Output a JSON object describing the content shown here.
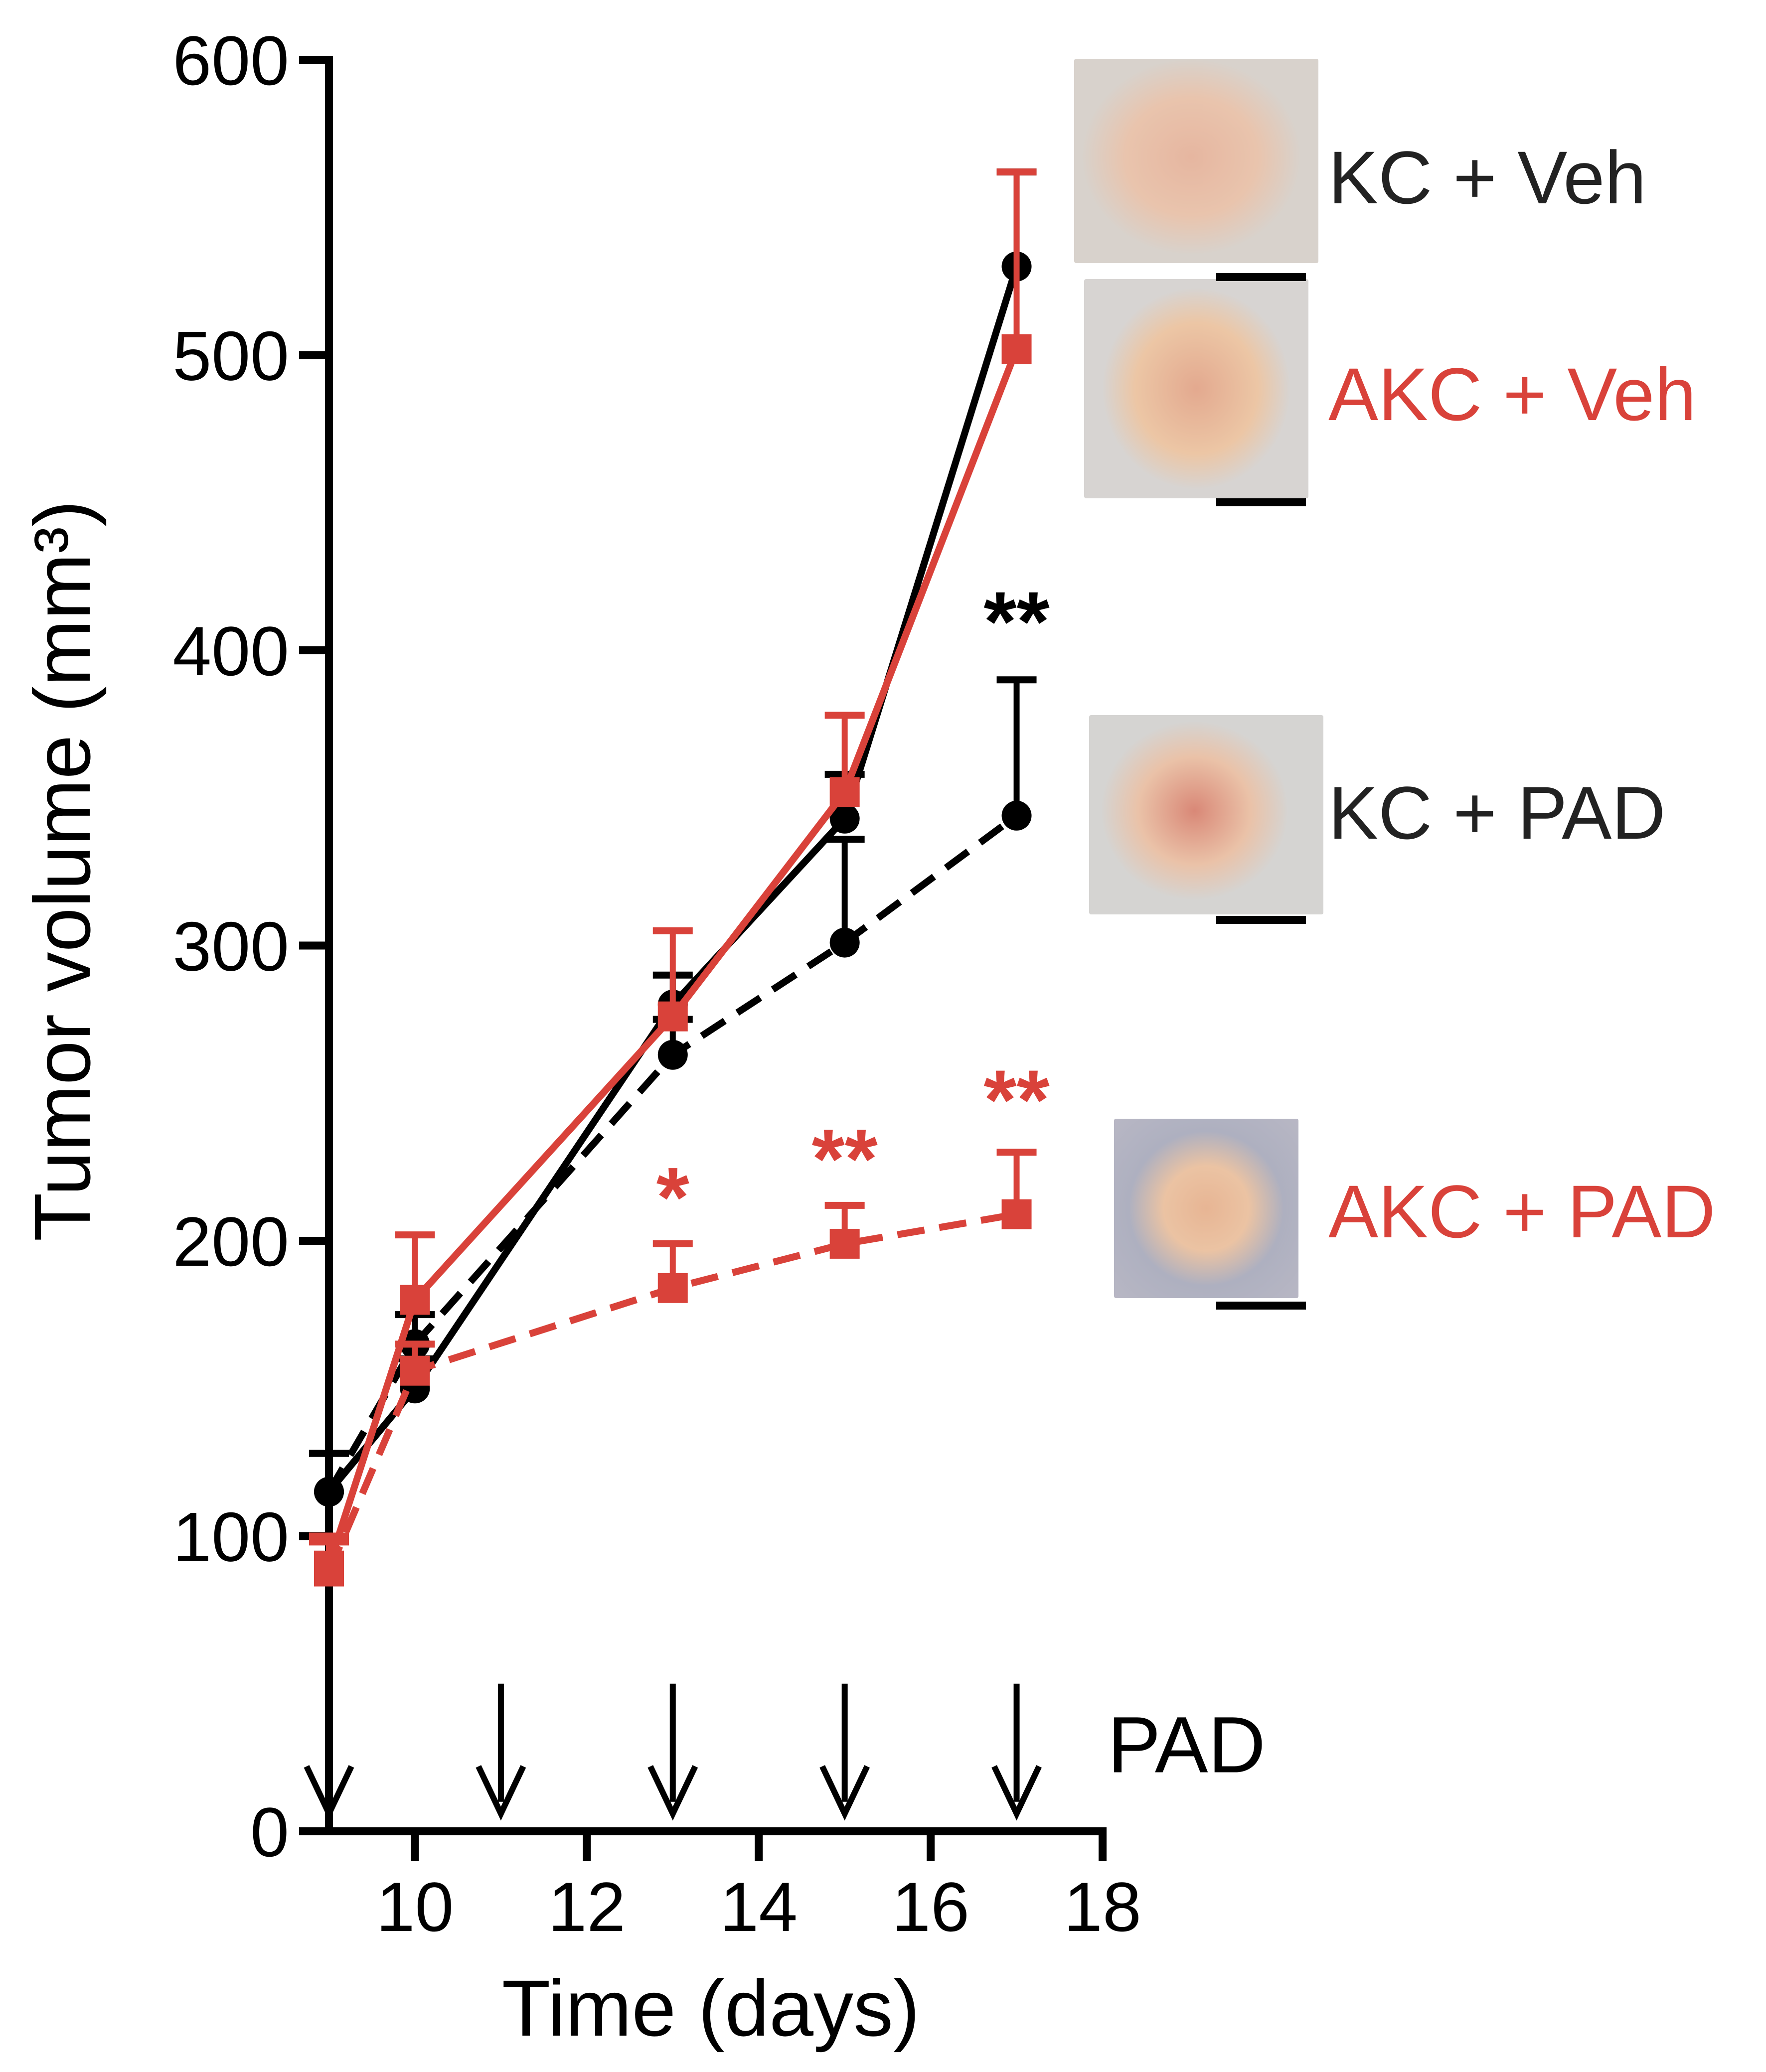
{
  "chart_data": {
    "type": "line",
    "title": "",
    "xlabel": "Time (days)",
    "ylabel": "Tumor volume (mm³)",
    "xlim": [
      9,
      18
    ],
    "ylim": [
      0,
      600
    ],
    "xticks": [
      10,
      12,
      14,
      16,
      18
    ],
    "yticks": [
      0,
      100,
      200,
      300,
      400,
      500,
      600
    ],
    "grid": false,
    "x": [
      9,
      10,
      13,
      15,
      17
    ],
    "series": [
      {
        "name": "KC + Veh",
        "color": "#000000",
        "dash": false,
        "marker": "circle",
        "values": [
          115,
          150,
          280,
          343,
          530
        ],
        "err_upper": [
          128,
          160,
          290,
          358,
          562
        ]
      },
      {
        "name": "KC + PAD",
        "color": "#000000",
        "dash": true,
        "marker": "circle",
        "values": [
          115,
          165,
          263,
          301,
          344
        ],
        "err_upper": [
          128,
          175,
          275,
          336,
          390
        ]
      },
      {
        "name": "AKC + Veh",
        "color": "#d9423a",
        "dash": false,
        "marker": "square",
        "values": [
          90,
          180,
          276,
          352,
          502
        ],
        "err_upper": [
          100,
          202,
          305,
          378,
          562
        ]
      },
      {
        "name": "AKC + PAD",
        "color": "#d9423a",
        "dash": true,
        "marker": "square",
        "values": [
          88,
          156,
          184,
          199,
          209
        ],
        "err_upper": [
          98,
          165,
          199,
          212,
          230
        ]
      }
    ],
    "annotations": [
      {
        "text": "**",
        "x": 17,
        "y": 410,
        "color": "#000000"
      },
      {
        "text": "*",
        "x": 13,
        "y": 215,
        "color": "#d9423a"
      },
      {
        "text": "**",
        "x": 15,
        "y": 228,
        "color": "#d9423a"
      },
      {
        "text": "**",
        "x": 17,
        "y": 248,
        "color": "#d9423a"
      }
    ],
    "treatment_arrows": {
      "label": "PAD",
      "days": [
        9,
        11,
        13,
        15,
        17
      ]
    },
    "legend": [
      {
        "label": "KC + Veh",
        "color": "#000000"
      },
      {
        "label": "AKC + Veh",
        "color": "#d9423a"
      },
      {
        "label": "KC + PAD",
        "color": "#000000"
      },
      {
        "label": "AKC + PAD",
        "color": "#d9423a"
      }
    ]
  }
}
